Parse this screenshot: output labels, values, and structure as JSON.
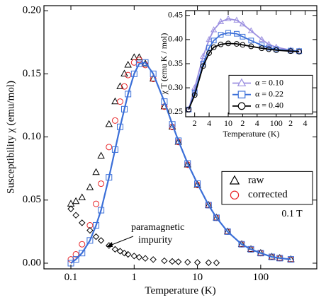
{
  "chart_data": [
    {
      "type": "scatter",
      "xlabel": "Temperature (K)",
      "ylabel": "Susceptibility χ (emu/mol)",
      "xscale": "log",
      "xlim": [
        0.0375,
        770
      ],
      "xticks": [
        0.1,
        1,
        10,
        100
      ],
      "ylim": [
        -0.0045,
        0.204
      ],
      "yticks": [
        {
          "value": 0,
          "label": "0.00"
        },
        {
          "value": 0.05,
          "label": "0.05"
        },
        {
          "value": 0.1,
          "label": "0.10"
        },
        {
          "value": 0.15,
          "label": "0.15"
        },
        {
          "value": 0.2,
          "label": "0.20"
        }
      ],
      "legend": "center right",
      "annotations": [
        "paramagnetic",
        "impurity",
        "0.1 T"
      ],
      "x": [
        0.1,
        0.12,
        0.15,
        0.2,
        0.25,
        0.3,
        0.4,
        0.5,
        0.6,
        0.7,
        0.8,
        1,
        1.2,
        1.5,
        2,
        3,
        4,
        5,
        7,
        10,
        15,
        20,
        30,
        50,
        70,
        100,
        150,
        200,
        300
      ],
      "series": [
        {
          "name": "raw",
          "color": "#000000",
          "marker": "triangle",
          "line": false,
          "values": [
            0.047,
            0.049,
            0.052,
            0.06,
            0.072,
            0.085,
            0.11,
            0.128,
            0.14,
            0.15,
            0.157,
            0.163,
            0.163,
            0.158,
            0.146,
            0.124,
            0.108,
            0.096,
            0.078,
            0.062,
            0.046,
            0.036,
            0.025,
            0.015,
            0.011,
            0.008,
            0.005,
            0.004,
            0.003
          ]
        },
        {
          "name": "corrected",
          "color": "#e8262a",
          "marker": "circle",
          "line": false,
          "values": [
            0.003,
            0.007,
            0.015,
            0.03,
            0.047,
            0.063,
            0.092,
            0.113,
            0.128,
            0.14,
            0.149,
            0.159,
            0.161,
            0.157,
            0.146,
            0.124,
            0.108,
            0.096,
            0.078,
            0.062,
            0.046,
            0.036,
            0.025,
            0.015,
            0.011,
            0.008,
            0.005,
            0.004,
            0.003
          ]
        },
        {
          "color": "#3b6fd8",
          "marker": "square",
          "line": true,
          "values": [
            0,
            0.003,
            0.008,
            0.018,
            0.03,
            0.042,
            0.068,
            0.09,
            0.108,
            0.122,
            0.134,
            0.15,
            0.158,
            0.159,
            0.15,
            0.128,
            0.11,
            0.097,
            0.079,
            0.063,
            0.046,
            0.036,
            0.025,
            0.015,
            0.011,
            0.008,
            0.005,
            0.004,
            0.003
          ]
        },
        {
          "color": "#000000",
          "marker": "diamond",
          "line": false,
          "values": [
            0.043,
            0.038,
            0.032,
            0.026,
            0.021,
            0.018,
            0.014,
            0.011,
            0.0095,
            0.008,
            0.007,
            0.0057,
            0.0047,
            0.0038,
            0.0029,
            0.0019,
            0.0014,
            0.0011,
            0.0008,
            0.0006,
            0.0004,
            0.0003,
            null,
            null,
            null,
            null,
            null,
            null,
            null
          ]
        }
      ]
    },
    {
      "type": "scatter",
      "xlabel": "Temperature (K)",
      "ylabel": "χ T (emu K / mol)",
      "xscale": "log",
      "xlim": [
        1.3,
        700
      ],
      "xticks": [
        2,
        4,
        10,
        {
          "value": 20,
          "label": "2"
        },
        {
          "value": 40,
          "label": "4"
        },
        100,
        {
          "value": 200,
          "label": "2"
        },
        {
          "value": 400,
          "label": "4"
        }
      ],
      "ylim": [
        0.24,
        0.46
      ],
      "yticks": [
        0.25,
        {
          "value": 0.3,
          "label": "0.30"
        },
        0.35,
        {
          "value": 0.4,
          "label": "0.40"
        },
        0.45
      ],
      "legend": "lower right",
      "x": [
        1.5,
        2,
        3,
        4,
        5,
        7,
        10,
        15,
        20,
        30,
        50,
        70,
        100,
        200,
        300
      ],
      "series": [
        {
          "name": "α = 0.10",
          "color": "#9b8fe0",
          "marker": "triangle",
          "line": true,
          "values": [
            0.255,
            0.3,
            0.365,
            0.4,
            0.42,
            0.437,
            0.443,
            0.44,
            0.432,
            0.418,
            0.4,
            0.39,
            0.384,
            0.378,
            0.376
          ]
        },
        {
          "name": "α = 0.22",
          "color": "#3b6fd8",
          "marker": "square",
          "line": true,
          "values": [
            0.255,
            0.29,
            0.35,
            0.383,
            0.398,
            0.41,
            0.414,
            0.412,
            0.406,
            0.398,
            0.388,
            0.383,
            0.38,
            0.377,
            0.376
          ]
        },
        {
          "name": "α = 0.40",
          "color": "#000000",
          "marker": "circle",
          "line": true,
          "values": [
            0.255,
            0.285,
            0.345,
            0.372,
            0.384,
            0.39,
            0.392,
            0.391,
            0.389,
            0.386,
            0.382,
            0.38,
            0.378,
            0.376,
            0.375
          ]
        }
      ]
    }
  ]
}
